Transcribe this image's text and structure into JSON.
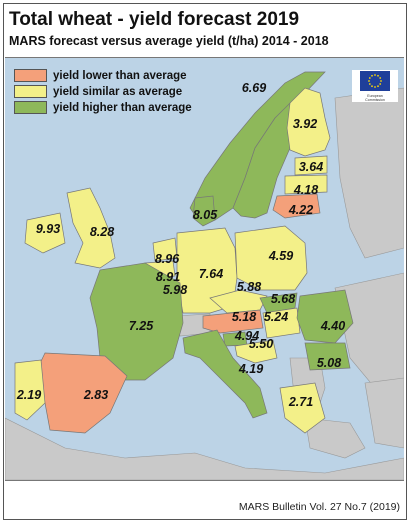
{
  "title": "Total wheat - yield forecast 2019",
  "subtitle": "MARS forecast versus average yield (t/ha) 2014 - 2018",
  "footer": "MARS Bulletin Vol. 27 No.7 (2019)",
  "logo_text": "European Commission",
  "colors": {
    "lower": "#f4a07a",
    "similar": "#f3f089",
    "higher": "#8eb85a",
    "sea": "#bcd3e6",
    "nodata": "#c9c9c9"
  },
  "legend": [
    {
      "label": "yield lower than average",
      "category": "lower"
    },
    {
      "label": "yield similar as average",
      "category": "similar"
    },
    {
      "label": "yield higher than average",
      "category": "higher"
    }
  ],
  "regions": [
    {
      "id": "norway",
      "value": "",
      "category": "higher"
    },
    {
      "id": "sweden",
      "value": "6.69",
      "category": "higher"
    },
    {
      "id": "finland",
      "value": "3.92",
      "category": "similar"
    },
    {
      "id": "estonia",
      "value": "3.64",
      "category": "similar"
    },
    {
      "id": "latvia",
      "value": "4.18",
      "category": "similar"
    },
    {
      "id": "lithuania",
      "value": "4.22",
      "category": "lower"
    },
    {
      "id": "ireland",
      "value": "9.93",
      "category": "similar"
    },
    {
      "id": "united-kingdom",
      "value": "8.28",
      "category": "similar"
    },
    {
      "id": "denmark",
      "value": "8.05",
      "category": "higher"
    },
    {
      "id": "netherlands",
      "value": "8.96",
      "category": "similar"
    },
    {
      "id": "belgium",
      "value": "8.91",
      "category": "similar"
    },
    {
      "id": "luxembourg",
      "value": "5.98",
      "category": "similar"
    },
    {
      "id": "germany",
      "value": "7.64",
      "category": "similar"
    },
    {
      "id": "poland",
      "value": "4.59",
      "category": "similar"
    },
    {
      "id": "czechia",
      "value": "5.88",
      "category": "similar"
    },
    {
      "id": "slovakia",
      "value": "5.68",
      "category": "higher"
    },
    {
      "id": "austria",
      "value": "5.18",
      "category": "lower"
    },
    {
      "id": "hungary",
      "value": "5.24",
      "category": "similar"
    },
    {
      "id": "slovenia",
      "value": "4.94",
      "category": "higher"
    },
    {
      "id": "croatia",
      "value": "5.50",
      "category": "similar"
    },
    {
      "id": "romania",
      "value": "4.40",
      "category": "higher"
    },
    {
      "id": "bulgaria",
      "value": "5.08",
      "category": "higher"
    },
    {
      "id": "greece",
      "value": "2.71",
      "category": "similar"
    },
    {
      "id": "italy",
      "value": "4.19",
      "category": "higher"
    },
    {
      "id": "france",
      "value": "7.25",
      "category": "higher"
    },
    {
      "id": "spain",
      "value": "2.83",
      "category": "lower"
    },
    {
      "id": "portugal",
      "value": "2.19",
      "category": "similar"
    }
  ]
}
